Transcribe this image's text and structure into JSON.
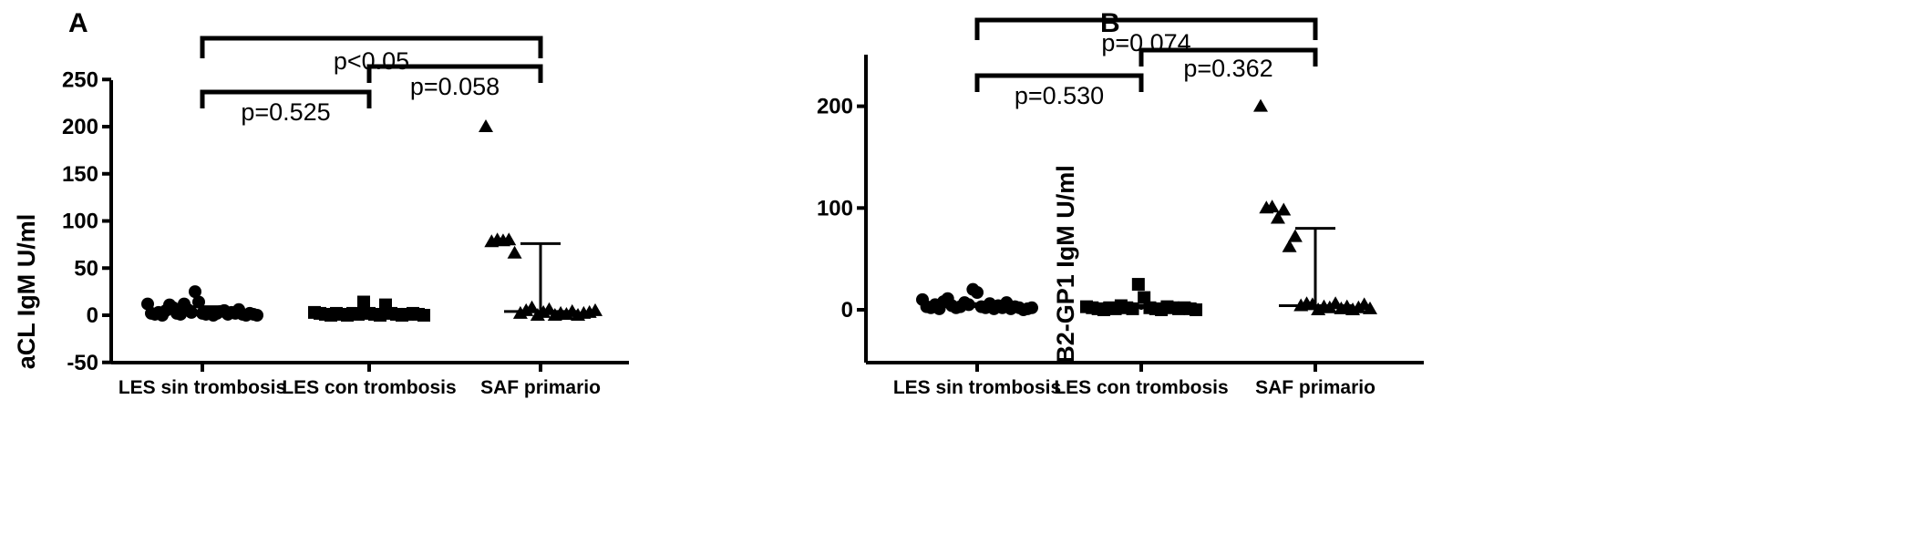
{
  "chart_data": [
    {
      "type": "scatter",
      "panel_label": "A",
      "ylabel": "aCL IgM U/ml",
      "ylim": [
        -50,
        250
      ],
      "yticks": [
        -50,
        0,
        50,
        100,
        150,
        200,
        250
      ],
      "categories": [
        "LES sin trombosis",
        "LES con trombosis",
        "SAF primario"
      ],
      "series": [
        {
          "category": "LES sin trombosis",
          "marker": "circle",
          "values": [
            12,
            2,
            1,
            3,
            0,
            5,
            11,
            8,
            2,
            1,
            12,
            6,
            3,
            25,
            14,
            2,
            1,
            3,
            0,
            2,
            4,
            5,
            1,
            3,
            2,
            6,
            1,
            0,
            2,
            1,
            0
          ],
          "median": 3,
          "error": [
            0,
            9
          ]
        },
        {
          "category": "LES con trombosis",
          "marker": "square",
          "values": [
            3,
            2,
            1,
            0,
            2,
            1,
            0,
            2,
            1,
            14,
            2,
            1,
            0,
            11,
            2,
            1,
            0,
            1,
            2,
            1,
            0
          ],
          "median": 1,
          "error": [
            0,
            3
          ]
        },
        {
          "category": "SAF primario",
          "marker": "triangle",
          "values": [
            200,
            78,
            80,
            79,
            80,
            66,
            2,
            5,
            8,
            0,
            3,
            6,
            0,
            2,
            1,
            4,
            0,
            2,
            3,
            5
          ],
          "median": 4,
          "error": [
            0,
            76
          ]
        }
      ],
      "comparisons": [
        {
          "from": "LES sin trombosis",
          "to": "SAF primario",
          "label": "p<0.05"
        },
        {
          "from": "LES con trombosis",
          "to": "SAF primario",
          "label": "p=0.058"
        },
        {
          "from": "LES sin trombosis",
          "to": "LES con trombosis",
          "label": "p=0.525"
        }
      ]
    },
    {
      "type": "scatter",
      "panel_label": "B",
      "ylabel": "B2-GP1 IgM U/ml",
      "ylim": [
        -50,
        250
      ],
      "yticks": [
        0,
        100,
        200
      ],
      "categories": [
        "LES sin trombosis",
        "LES con trombosis",
        "SAF primario"
      ],
      "series": [
        {
          "category": "LES sin trombosis",
          "marker": "circle",
          "values": [
            10,
            3,
            2,
            5,
            1,
            8,
            11,
            4,
            2,
            3,
            7,
            5,
            20,
            17,
            3,
            2,
            6,
            1,
            4,
            2,
            7,
            1,
            3,
            2,
            0,
            1,
            2
          ],
          "median": 3,
          "error": [
            0,
            6
          ]
        },
        {
          "category": "LES con trombosis",
          "marker": "square",
          "values": [
            3,
            2,
            1,
            0,
            2,
            1,
            4,
            2,
            1,
            25,
            12,
            2,
            1,
            0,
            3,
            2,
            1,
            2,
            1,
            0
          ],
          "median": 2,
          "error": [
            0,
            4
          ]
        },
        {
          "category": "SAF primario",
          "marker": "triangle",
          "values": [
            200,
            100,
            101,
            90,
            98,
            62,
            72,
            4,
            6,
            5,
            0,
            3,
            2,
            6,
            1,
            3,
            0,
            2,
            5,
            1
          ],
          "median": 4,
          "error": [
            0,
            80
          ]
        }
      ],
      "comparisons": [
        {
          "from": "LES sin trombosis",
          "to": "SAF primario",
          "label": "p=0.074"
        },
        {
          "from": "LES con trombosis",
          "to": "SAF primario",
          "label": "p=0.362"
        },
        {
          "from": "LES sin trombosis",
          "to": "LES con trombosis",
          "label": "p=0.530"
        }
      ]
    }
  ]
}
